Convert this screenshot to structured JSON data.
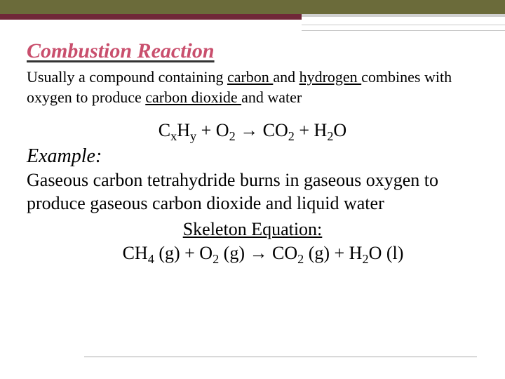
{
  "title": "Combustion Reaction",
  "intro": {
    "p1a": "Usually a compound containing ",
    "u1": "carbon ",
    "p1b": "and ",
    "u2": "hydrogen ",
    "p1c": "combines with oxygen to produce ",
    "u3": "carbon dioxide ",
    "p1d": "and water"
  },
  "generalEq": {
    "lhs1": "C",
    "sub1": "x",
    "lhs2": "H",
    "sub2": "y",
    "plus": " + O",
    "sub3": "2",
    "arrow": " → CO",
    "sub4": "2",
    "rhs2": " + H",
    "sub5": "2",
    "rhs3": "O"
  },
  "exampleLabel": "Example:",
  "exampleText": "Gaseous carbon tetrahydride burns in gaseous oxygen to produce gaseous carbon dioxide and liquid water",
  "skeletonLabel": "Skeleton Equation:",
  "skeletonEq": {
    "a": "CH",
    "s1": "4",
    "b": " (g) + O",
    "s2": "2",
    "c": " (g) → CO",
    "s3": "2",
    "d": " (g) + H",
    "s4": "2",
    "e": "O (l)"
  },
  "colors": {
    "olive": "#6b6b3a",
    "burgundy": "#702838",
    "titlePink": "#c94f6d"
  }
}
